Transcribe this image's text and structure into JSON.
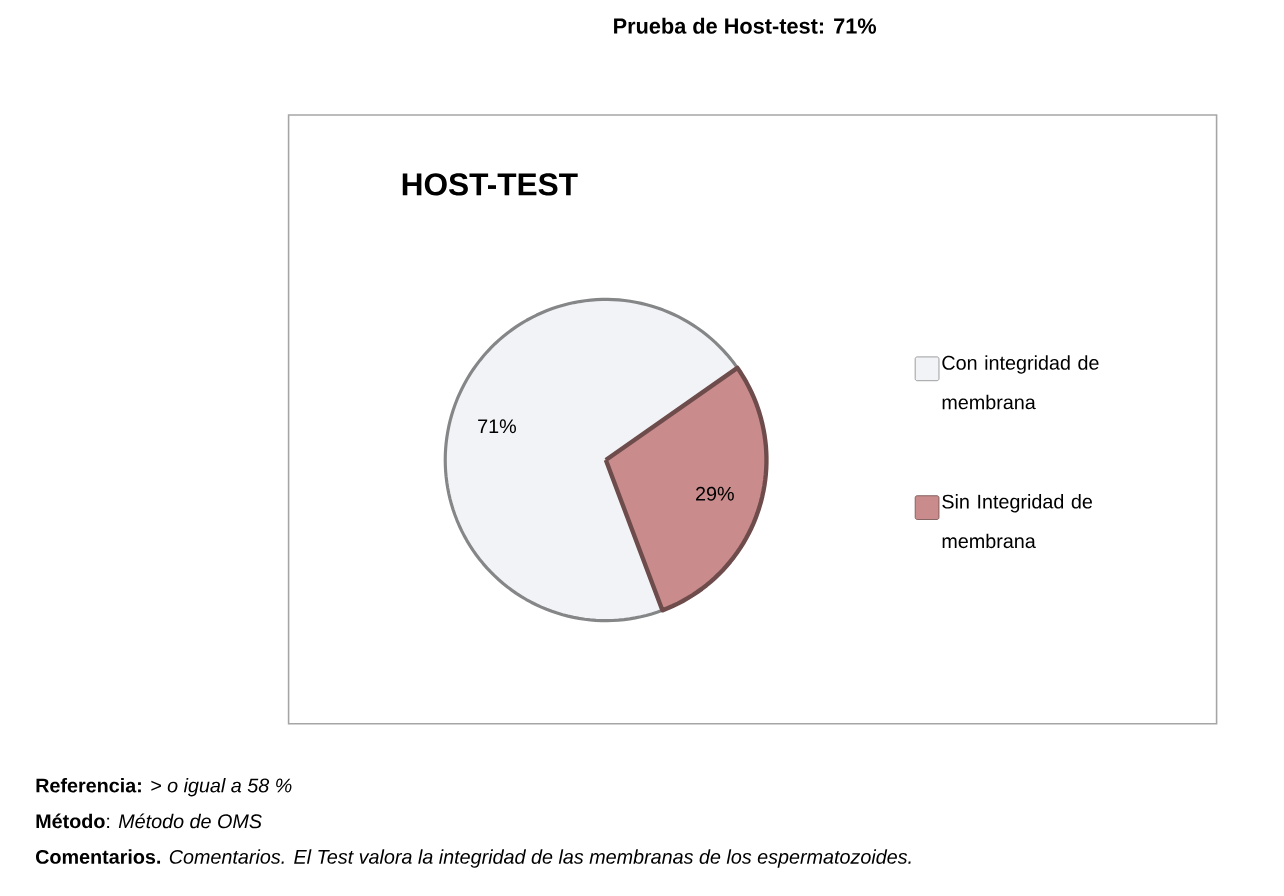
{
  "chart_data": {
    "type": "pie",
    "title": "HOST-TEST",
    "categories": [
      "Con integridad de membrana",
      "Sin Integridad de membrana"
    ],
    "values": [
      71,
      29
    ],
    "colors": [
      "#f2f3f6",
      "#c98b8b"
    ],
    "value_labels": [
      "71%",
      "29%"
    ],
    "legend": "right",
    "annotations": [
      "**Prueba de Host-test:** **71%**",
      "**Referencia:** *> o igual a 58 %*",
      "**Método**: *Método de OMS*",
      "**Comentarios.** *Comentarios. El Test valora la integridad de las membranas de los espermatozoides.*"
    ]
  }
}
